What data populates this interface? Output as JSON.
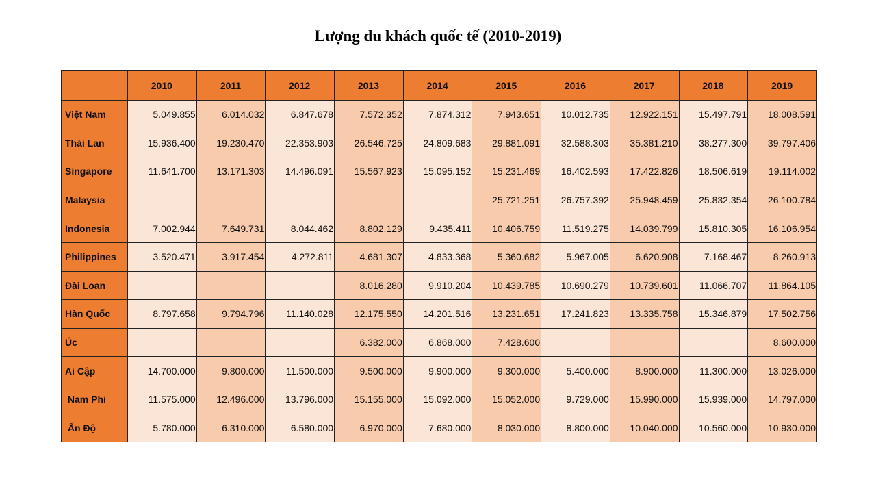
{
  "title": "Lượng du khách quốc tế (2010-2019)",
  "table": {
    "corner": "",
    "years": [
      "2010",
      "2011",
      "2012",
      "2013",
      "2014",
      "2015",
      "2016",
      "2017",
      "2018",
      "2019"
    ],
    "rows": [
      {
        "country": "Việt Nam",
        "values": [
          "5.049.855",
          "6.014.032",
          "6.847.678",
          "7.572.352",
          "7.874.312",
          "7.943.651",
          "10.012.735",
          "12.922.151",
          "15.497.791",
          "18.008.591"
        ]
      },
      {
        "country": "Thái Lan",
        "values": [
          "15.936.400",
          "19.230.470",
          "22.353.903",
          "26.546.725",
          "24.809.683",
          "29.881.091",
          "32.588.303",
          "35.381.210",
          "38.277.300",
          "39.797.406"
        ]
      },
      {
        "country": "Singapore",
        "values": [
          "11.641.700",
          "13.171.303",
          "14.496.091",
          "15.567.923",
          "15.095.152",
          "15.231.469",
          "16.402.593",
          "17.422.826",
          "18.506.619",
          "19.114.002"
        ]
      },
      {
        "country": "Malaysia",
        "values": [
          "",
          "",
          "",
          "",
          "",
          "25.721.251",
          "26.757.392",
          "25.948.459",
          "25.832.354",
          "26.100.784"
        ]
      },
      {
        "country": "Indonesia",
        "values": [
          "7.002.944",
          "7.649.731",
          "8.044.462",
          "8.802.129",
          "9.435.411",
          "10.406.759",
          "11.519.275",
          "14.039.799",
          "15.810.305",
          "16.106.954"
        ]
      },
      {
        "country": "Philippines",
        "values": [
          "3.520.471",
          "3.917.454",
          "4.272.811",
          "4.681.307",
          "4.833.368",
          "5.360.682",
          "5.967.005",
          "6.620.908",
          "7.168.467",
          "8.260.913"
        ]
      },
      {
        "country": "Đài Loan",
        "values": [
          "",
          "",
          "",
          "8.016.280",
          "9.910.204",
          "10.439.785",
          "10.690.279",
          "10.739.601",
          "11.066.707",
          "11.864.105"
        ]
      },
      {
        "country": "Hàn Quốc",
        "values": [
          "8.797.658",
          "9.794.796",
          "11.140.028",
          "12.175.550",
          "14.201.516",
          "13.231.651",
          "17.241.823",
          "13.335.758",
          "15.346.879",
          "17.502.756"
        ]
      },
      {
        "country": "Úc",
        "values": [
          "",
          "",
          "",
          "6.382.000",
          "6.868.000",
          "7.428.600",
          "",
          "",
          "",
          "8.600.000"
        ]
      },
      {
        "country": "Ai Cập",
        "values": [
          "14.700.000",
          "9.800.000",
          "11.500.000",
          "9.500.000",
          "9.900.000",
          "9.300.000",
          "5.400.000",
          "8.900.000",
          "11.300.000",
          "13.026.000"
        ]
      },
      {
        "country": " Nam Phi",
        "values": [
          "11.575.000",
          "12.496.000",
          "13.796.000",
          "15.155.000",
          "15.092.000",
          "15.052.000",
          "9.729.000",
          "15.990.000",
          "15.939.000",
          "14.797.000"
        ]
      },
      {
        "country": " Ấn Độ",
        "values": [
          "5.780.000",
          "6.310.000",
          "6.580.000",
          "6.970.000",
          "7.680.000",
          "8.030.000",
          "8.800.000",
          "10.040.000",
          "10.560.000",
          "10.930.000"
        ]
      }
    ]
  },
  "colors": {
    "header": "#ED7D31",
    "light": "#FBE5D6",
    "dark": "#F8CBAD"
  }
}
